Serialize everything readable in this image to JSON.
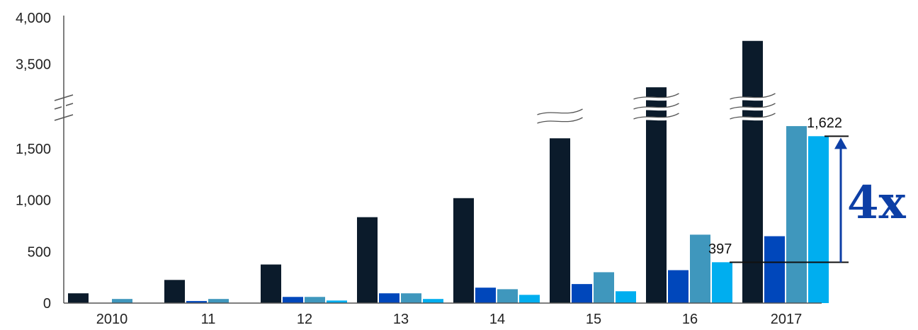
{
  "chart_data": {
    "type": "bar",
    "categories": [
      "2010",
      "11",
      "12",
      "13",
      "14",
      "15",
      "16",
      "2017"
    ],
    "series": [
      {
        "values": [
          95,
          225,
          375,
          835,
          1020,
          2700,
          3250,
          3750
        ],
        "color": "#0b1b2b"
      },
      {
        "values": [
          null,
          20,
          60,
          95,
          150,
          185,
          320,
          650
        ],
        "color": "#0047bb"
      },
      {
        "values": [
          40,
          40,
          60,
          95,
          135,
          300,
          665,
          1720
        ],
        "color": "#3f97bd"
      },
      {
        "values": [
          null,
          null,
          25,
          40,
          80,
          115,
          397,
          1622
        ],
        "color": "#00aeef"
      }
    ],
    "y_ticks": [
      "0",
      "500",
      "1,000",
      "1,500",
      "3,500",
      "4,000"
    ],
    "ylim": [
      0,
      4000
    ],
    "axis_break": "between 1,500 and 3,500",
    "grid": false,
    "annotations": {
      "start_label": "397",
      "end_label": "1,622",
      "multiplier": "4x",
      "arrow_color": "#0d3fa6"
    }
  }
}
